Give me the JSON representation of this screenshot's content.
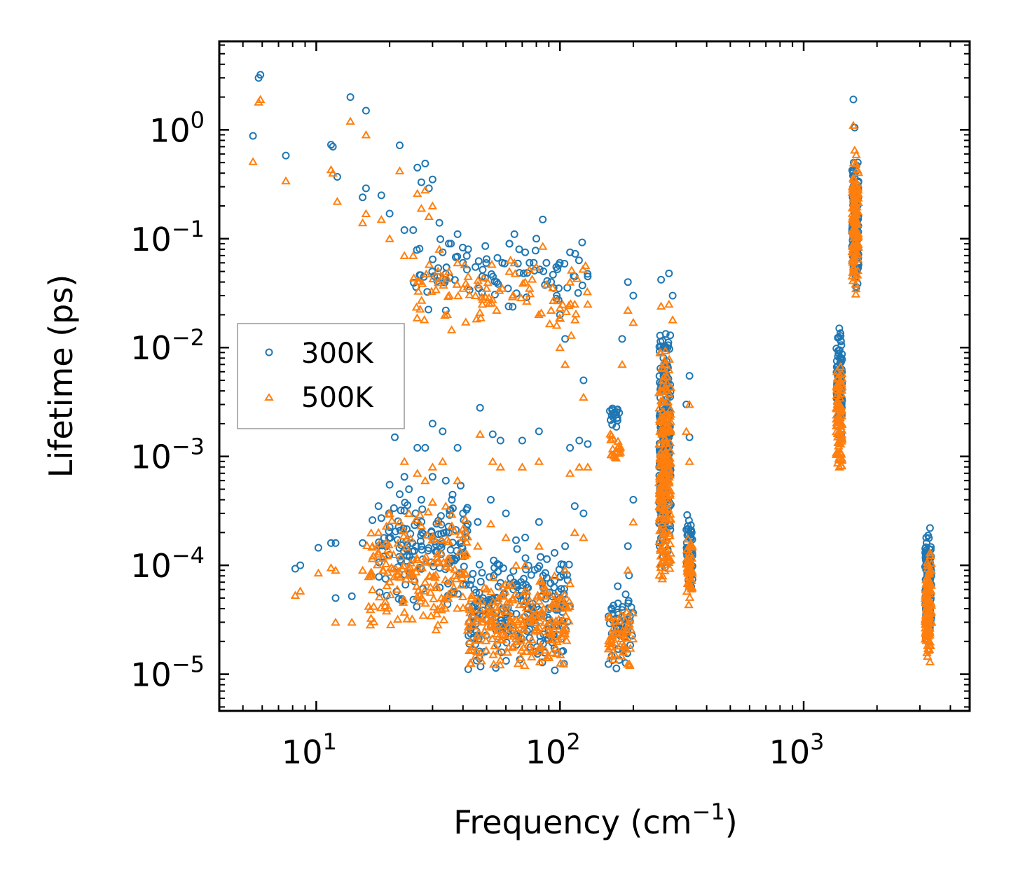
{
  "chart_data": {
    "type": "scatter",
    "title": "",
    "xlabel": "Frequency (cm",
    "xlabel_sup": "−1",
    "xlabel_tail": ")",
    "ylabel": "Lifetime (ps)",
    "xscale": "log",
    "yscale": "log",
    "xlim": [
      4.0,
      4800
    ],
    "ylim": [
      4.6e-06,
      6.5
    ],
    "legend_position": "center-left",
    "x_ticks": [
      {
        "base": "10",
        "exp": "1",
        "value": 10
      },
      {
        "base": "10",
        "exp": "2",
        "value": 100
      },
      {
        "base": "10",
        "exp": "3",
        "value": 1000
      }
    ],
    "y_ticks": [
      {
        "base": "10",
        "exp": "0",
        "value": 1
      },
      {
        "base": "10",
        "exp": "−1",
        "value": 0.1
      },
      {
        "base": "10",
        "exp": "−2",
        "value": 0.01
      },
      {
        "base": "10",
        "exp": "−3",
        "value": 0.001
      },
      {
        "base": "10",
        "exp": "−4",
        "value": 0.0001
      },
      {
        "base": "10",
        "exp": "−5",
        "value": 1e-05
      }
    ],
    "series": [
      {
        "name": "300K",
        "marker": "circle",
        "color": "#1f77b4",
        "points": [
          [
            5.9,
            3.2
          ],
          [
            5.8,
            3.0
          ],
          [
            5.5,
            0.88
          ],
          [
            7.5,
            0.58
          ],
          [
            11.5,
            0.73
          ],
          [
            11.7,
            0.7
          ],
          [
            12.2,
            0.37
          ],
          [
            13.8,
            2.0
          ],
          [
            15.5,
            0.24
          ],
          [
            16,
            0.29
          ],
          [
            16,
            1.5
          ],
          [
            18.5,
            0.25
          ],
          [
            20,
            0.17
          ],
          [
            22,
            0.72
          ],
          [
            23,
            0.12
          ],
          [
            25,
            0.12
          ],
          [
            26,
            0.45
          ],
          [
            27,
            0.33
          ],
          [
            28,
            0.49
          ],
          [
            29,
            0.29
          ],
          [
            30,
            0.35
          ],
          [
            32,
            0.14
          ],
          [
            33,
            0.075
          ],
          [
            35,
            0.09
          ],
          [
            38,
            0.11
          ],
          [
            40,
            0.06
          ],
          [
            42,
            0.08
          ],
          [
            45,
            0.055
          ],
          [
            48,
            0.045
          ],
          [
            50,
            0.065
          ],
          [
            55,
            0.04
          ],
          [
            58,
            0.06
          ],
          [
            62,
            0.09
          ],
          [
            65,
            0.11
          ],
          [
            68,
            0.08
          ],
          [
            72,
            0.075
          ],
          [
            75,
            0.06
          ],
          [
            80,
            0.1
          ],
          [
            85,
            0.15
          ],
          [
            88,
            0.06
          ],
          [
            92,
            0.04
          ],
          [
            97,
            0.03
          ],
          [
            100,
            0.02
          ],
          [
            105,
            0.012
          ],
          [
            110,
            0.075
          ],
          [
            115,
            0.045
          ],
          [
            125,
            0.005
          ],
          [
            130,
            0.045
          ],
          [
            190,
            0.04
          ],
          [
            180,
            0.012
          ],
          [
            200,
            0.03
          ],
          [
            260,
            0.042
          ],
          [
            280,
            0.048
          ],
          [
            290,
            0.03
          ],
          [
            340,
            0.0055
          ],
          [
            330,
            0.003
          ],
          [
            340,
            0.0015
          ],
          [
            200,
            0.0004
          ],
          [
            190,
            0.00015
          ],
          [
            21,
            0.0015
          ],
          [
            23,
            0.00065
          ],
          [
            26,
            0.0012
          ],
          [
            28,
            0.0012
          ],
          [
            30,
            0.002
          ],
          [
            33,
            0.0017
          ],
          [
            38,
            0.0012
          ],
          [
            47,
            0.0028
          ],
          [
            53,
            0.0016
          ],
          [
            57,
            0.0014
          ],
          [
            70,
            0.0014
          ],
          [
            82,
            0.0017
          ],
          [
            110,
            0.0012
          ],
          [
            120,
            0.0014
          ],
          [
            130,
            0.0013
          ],
          [
            10.2,
            0.000145
          ],
          [
            8.2,
            9.3e-05
          ],
          [
            8.6,
            0.0001
          ],
          [
            11.5,
            0.00016
          ],
          [
            12,
            0.00016
          ],
          [
            12,
            5e-05
          ],
          [
            14,
            5.2e-05
          ],
          [
            15.5,
            0.00016
          ],
          [
            17,
            0.00026
          ],
          [
            18,
            0.00035
          ],
          [
            20,
            0.00055
          ],
          [
            22,
            0.00045
          ],
          [
            24,
            0.0005
          ],
          [
            27,
            0.0004
          ],
          [
            30,
            0.00065
          ],
          [
            34,
            0.0006
          ],
          [
            36,
            0.0004
          ],
          [
            40,
            0.0003
          ],
          [
            46,
            0.00025
          ],
          [
            52,
            0.0004
          ],
          [
            60,
            0.0003
          ],
          [
            66,
            0.00017
          ],
          [
            72,
            0.00018
          ],
          [
            82,
            0.00025
          ],
          [
            95,
            0.00013
          ],
          [
            105,
            0.00015
          ],
          [
            115,
            0.00035
          ],
          [
            125,
            0.0003
          ],
          [
            1600,
            1.9
          ],
          [
            1620,
            1.05
          ],
          [
            1400,
            0.015
          ],
          [
            3300,
            0.00022
          ],
          [
            3300,
            0.0001
          ]
        ],
        "clusters": [
          {
            "x": [
              18,
              42
            ],
            "y": [
              3.5e-05,
              0.0006
            ],
            "n": 150
          },
          {
            "x": [
              42,
              110
            ],
            "y": [
              1e-05,
              0.00015
            ],
            "n": 230
          },
          {
            "x": [
              25,
              130
            ],
            "y": [
              0.02,
              0.12
            ],
            "n": 80
          },
          {
            "x": [
              160,
              175
            ],
            "y": [
              0.0018,
              0.003
            ],
            "n": 20
          },
          {
            "x": [
              158,
              200
            ],
            "y": [
              1e-05,
              9e-05
            ],
            "n": 50
          },
          {
            "x": [
              255,
              285
            ],
            "y": [
              8e-05,
              0.02
            ],
            "n": 220
          },
          {
            "x": [
              330,
              350
            ],
            "y": [
              6e-05,
              0.0003
            ],
            "n": 50
          },
          {
            "x": [
              1360,
              1440
            ],
            "y": [
              0.0012,
              0.015
            ],
            "n": 90
          },
          {
            "x": [
              1580,
              1680
            ],
            "y": [
              0.03,
              0.6
            ],
            "n": 140
          },
          {
            "x": [
              3150,
              3350
            ],
            "y": [
              1.8e-05,
              0.00022
            ],
            "n": 120
          }
        ]
      },
      {
        "name": "500K",
        "marker": "triangle",
        "color": "#ff7f0e",
        "points": [
          [
            5.9,
            1.9
          ],
          [
            5.8,
            1.8
          ],
          [
            5.5,
            0.51
          ],
          [
            7.5,
            0.34
          ],
          [
            11.5,
            0.43
          ],
          [
            11.7,
            0.4
          ],
          [
            12.2,
            0.22
          ],
          [
            13.8,
            1.2
          ],
          [
            15.5,
            0.14
          ],
          [
            16,
            0.17
          ],
          [
            16,
            0.9
          ],
          [
            18.5,
            0.15
          ],
          [
            20,
            0.1
          ],
          [
            22,
            0.42
          ],
          [
            23,
            0.07
          ],
          [
            25,
            0.07
          ],
          [
            26,
            0.26
          ],
          [
            27,
            0.19
          ],
          [
            28,
            0.28
          ],
          [
            29,
            0.16
          ],
          [
            30,
            0.2
          ],
          [
            32,
            0.08
          ],
          [
            33,
            0.045
          ],
          [
            35,
            0.05
          ],
          [
            38,
            0.06
          ],
          [
            40,
            0.035
          ],
          [
            42,
            0.045
          ],
          [
            45,
            0.03
          ],
          [
            48,
            0.025
          ],
          [
            50,
            0.035
          ],
          [
            55,
            0.022
          ],
          [
            58,
            0.035
          ],
          [
            62,
            0.05
          ],
          [
            65,
            0.06
          ],
          [
            72,
            0.04
          ],
          [
            75,
            0.035
          ],
          [
            80,
            0.055
          ],
          [
            85,
            0.085
          ],
          [
            92,
            0.022
          ],
          [
            97,
            0.016
          ],
          [
            100,
            0.01
          ],
          [
            105,
            0.007
          ],
          [
            110,
            0.04
          ],
          [
            115,
            0.025
          ],
          [
            125,
            0.0035
          ],
          [
            130,
            0.025
          ],
          [
            190,
            0.022
          ],
          [
            180,
            0.007
          ],
          [
            200,
            0.017
          ],
          [
            260,
            0.024
          ],
          [
            280,
            0.025
          ],
          [
            290,
            0.018
          ],
          [
            340,
            0.003
          ],
          [
            330,
            0.0017
          ],
          [
            340,
            0.0009
          ],
          [
            200,
            0.00025
          ],
          [
            190,
            9e-05
          ],
          [
            23,
            0.0009
          ],
          [
            26,
            0.0007
          ],
          [
            28,
            0.0006
          ],
          [
            30,
            0.0008
          ],
          [
            33,
            0.0009
          ],
          [
            38,
            0.0006
          ],
          [
            47,
            0.0016
          ],
          [
            53,
            0.0009
          ],
          [
            57,
            0.0008
          ],
          [
            70,
            0.0008
          ],
          [
            82,
            0.0009
          ],
          [
            110,
            0.0007
          ],
          [
            120,
            0.0008
          ],
          [
            130,
            0.0008
          ],
          [
            10.2,
            8.5e-05
          ],
          [
            8.2,
            5.3e-05
          ],
          [
            8.6,
            5.8e-05
          ],
          [
            11.5,
            9.5e-05
          ],
          [
            12,
            9e-05
          ],
          [
            12,
            3e-05
          ],
          [
            14,
            3e-05
          ],
          [
            15.5,
            9e-05
          ],
          [
            17,
            0.00015
          ],
          [
            18,
            0.0002
          ],
          [
            20,
            0.0003
          ],
          [
            22,
            0.00025
          ],
          [
            24,
            0.0003
          ],
          [
            27,
            0.00023
          ],
          [
            30,
            0.00038
          ],
          [
            34,
            0.00035
          ],
          [
            36,
            0.00023
          ],
          [
            40,
            0.00018
          ],
          [
            46,
            0.00015
          ],
          [
            52,
            0.00024
          ],
          [
            60,
            0.00018
          ],
          [
            66,
            0.0001
          ],
          [
            72,
            0.0001
          ],
          [
            82,
            0.00015
          ],
          [
            95,
            8e-05
          ],
          [
            105,
            9e-05
          ],
          [
            115,
            0.0002
          ],
          [
            125,
            0.00018
          ],
          [
            1600,
            1.1
          ],
          [
            1620,
            0.65
          ],
          [
            1400,
            0.0008
          ],
          [
            3300,
            0.00013
          ],
          [
            3300,
            1.3e-05
          ]
        ],
        "clusters": [
          {
            "x": [
              16,
              42
            ],
            "y": [
              2.2e-05,
              0.00035
            ],
            "n": 170
          },
          {
            "x": [
              42,
              110
            ],
            "y": [
              1e-05,
              9e-05
            ],
            "n": 230
          },
          {
            "x": [
              25,
              130
            ],
            "y": [
              0.012,
              0.07
            ],
            "n": 80
          },
          {
            "x": [
              160,
              178
            ],
            "y": [
              0.00075,
              0.0018
            ],
            "n": 20
          },
          {
            "x": [
              158,
              200
            ],
            "y": [
              1e-05,
              5e-05
            ],
            "n": 50
          },
          {
            "x": [
              255,
              285
            ],
            "y": [
              4.5e-05,
              0.012
            ],
            "n": 220
          },
          {
            "x": [
              330,
              350
            ],
            "y": [
              4e-05,
              0.00018
            ],
            "n": 50
          },
          {
            "x": [
              1360,
              1440
            ],
            "y": [
              0.0007,
              0.008
            ],
            "n": 90
          },
          {
            "x": [
              1580,
              1680
            ],
            "y": [
              0.03,
              0.65
            ],
            "n": 140
          },
          {
            "x": [
              3150,
              3350
            ],
            "y": [
              1.2e-05,
              0.00013
            ],
            "n": 120
          }
        ]
      }
    ]
  }
}
